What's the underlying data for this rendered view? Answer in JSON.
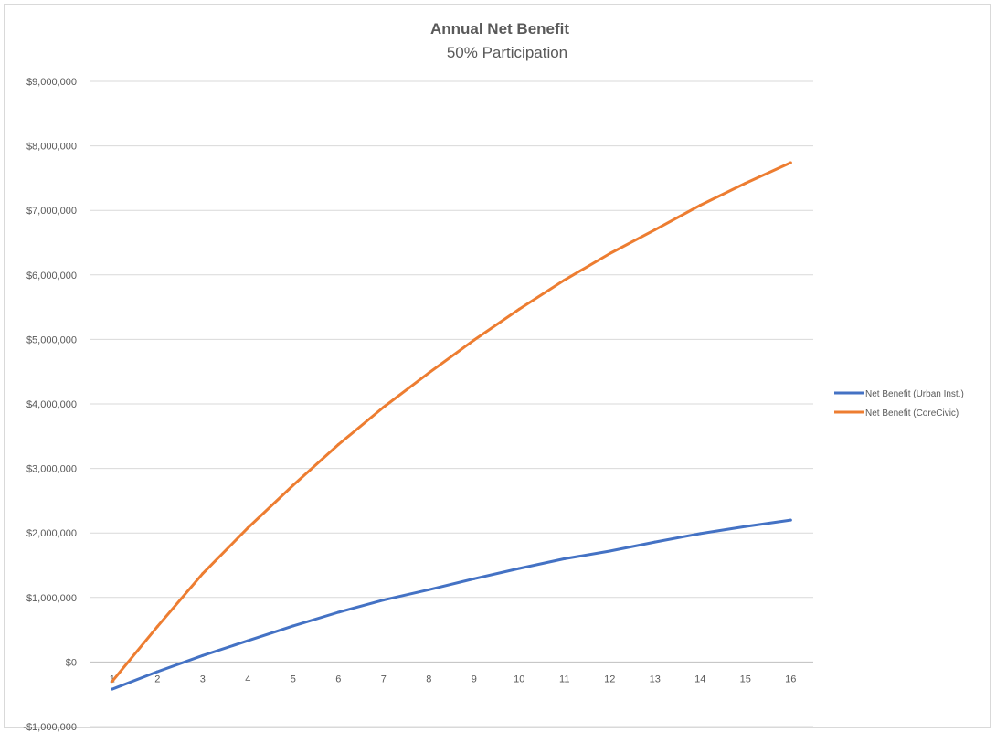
{
  "chart_data": {
    "type": "line",
    "title": "Annual Net Benefit",
    "subtitle": "50% Participation",
    "xlabel": "",
    "ylabel": "",
    "x": [
      1,
      2,
      3,
      4,
      5,
      6,
      7,
      8,
      9,
      10,
      11,
      12,
      13,
      14,
      15,
      16
    ],
    "ylim": [
      -1000000,
      9000000
    ],
    "y_ticks": [
      9000000,
      8000000,
      7000000,
      6000000,
      5000000,
      4000000,
      3000000,
      2000000,
      1000000,
      0,
      -1000000
    ],
    "y_tick_labels": [
      "$9,000,000",
      "$8,000,000",
      "$7,000,000",
      "$6,000,000",
      "$5,000,000",
      "$4,000,000",
      "$3,000,000",
      "$2,000,000",
      "$1,000,000",
      "$0",
      "-$1,000,000"
    ],
    "grid": true,
    "legend_position": "right",
    "series": [
      {
        "name": "Net Benefit (Urban Inst.)",
        "color": "#4472c4",
        "values": [
          -420000,
          -150000,
          100000,
          330000,
          560000,
          770000,
          960000,
          1120000,
          1290000,
          1450000,
          1600000,
          1720000,
          1860000,
          1990000,
          2100000,
          2200000
        ]
      },
      {
        "name": "Net Benefit (CoreCivic)",
        "color": "#ed7d31",
        "values": [
          -300000,
          550000,
          1370000,
          2080000,
          2740000,
          3370000,
          3950000,
          4480000,
          4990000,
          5470000,
          5920000,
          6330000,
          6700000,
          7080000,
          7420000,
          7740000
        ]
      }
    ]
  }
}
